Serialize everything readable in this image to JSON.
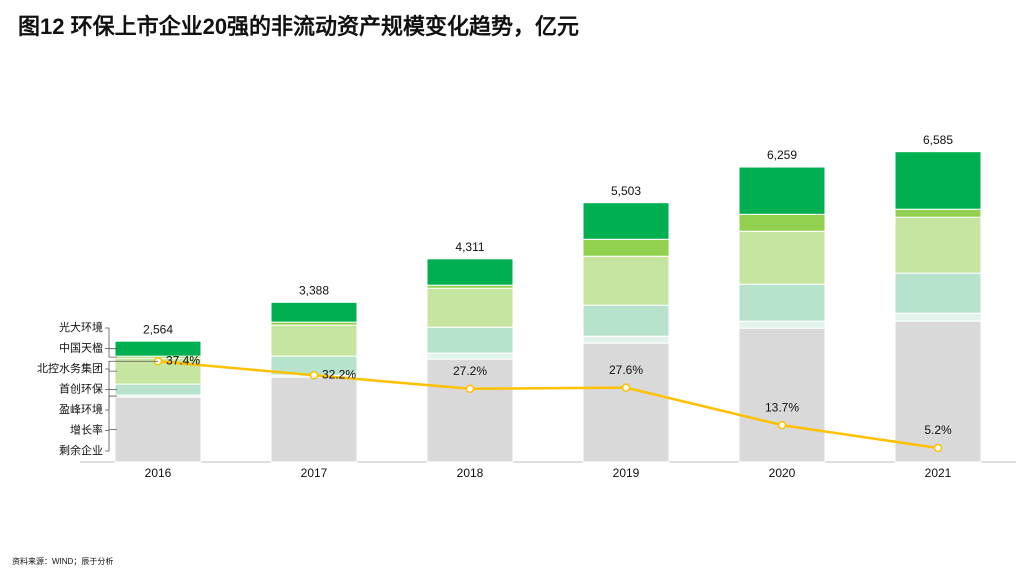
{
  "chart_data": {
    "type": "stacked-bar-line",
    "title": "图12  环保上市企业20强的非流动资产规模变化趋势，亿元",
    "source": "资料来源：WIND；辰于分析",
    "categories": [
      "2016",
      "2017",
      "2018",
      "2019",
      "2020",
      "2021"
    ],
    "ylim": [
      0,
      8000
    ],
    "y2lim": [
      0,
      140
    ],
    "totals": [
      2564,
      3388,
      4311,
      5503,
      6259,
      6585
    ],
    "total_labels": [
      "2,564",
      "3,388",
      "4,311",
      "5,503",
      "6,259",
      "6,585"
    ],
    "series": [
      {
        "name": "剩余企业",
        "color": "#d9d9d9",
        "values": [
          1378,
          1802,
          2183,
          2522,
          2840,
          2989
        ]
      },
      {
        "name": "盈峰环境",
        "color": "#e2f3ec",
        "values": [
          42,
          42,
          127,
          148,
          148,
          170
        ]
      },
      {
        "name": "首创环保",
        "color": "#b7e3cc",
        "values": [
          233,
          403,
          551,
          657,
          784,
          848
        ]
      },
      {
        "name": "北控水务集团",
        "color": "#c6e5a0",
        "values": [
          551,
          657,
          827,
          1039,
          1124,
          1187
        ]
      },
      {
        "name": "中国天楹",
        "color": "#92d050",
        "values": [
          42,
          64,
          64,
          360,
          360,
          170
        ]
      },
      {
        "name": "光大环境",
        "color": "#00b050",
        "values": [
          318,
          420,
          559,
          777,
          1003,
          1221
        ]
      },
      {
        "name": "增长率",
        "color": "#ffc000",
        "type": "line",
        "axis": "y2",
        "values": [
          37.4,
          32.2,
          27.2,
          27.6,
          13.7,
          5.2
        ],
        "value_labels": [
          "37.4%",
          "32.2%",
          "27.2%",
          "27.6%",
          "13.7%",
          "5.2%"
        ]
      }
    ]
  }
}
